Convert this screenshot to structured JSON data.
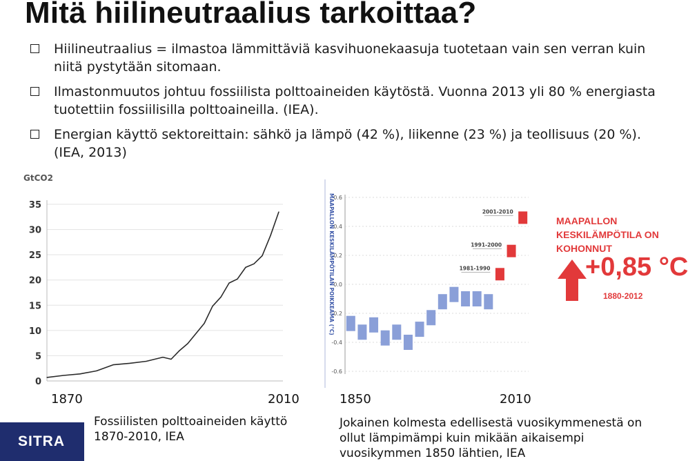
{
  "title": "Mitä hiilineutraalius tarkoittaa?",
  "bullets": [
    "Hiilineutraalius = ilmastoa lämmittäviä kasvihuonekaasuja tuotetaan vain sen verran kuin niitä pystytään sitomaan.",
    "Ilmastonmuutos johtuu fossiilista polttoaineiden käytöstä. Vuonna 2013 yli 80 % energiasta tuotettiin fossiilisilla polttoaineilla. (IEA).",
    "Energian käyttö sektoreittain: sähkö ja lämpö (42 %), liikenne (23 %) ja teollisuus (20 %). (IEA, 2013)"
  ],
  "chart_data": [
    {
      "type": "line",
      "ylabel": "GtCO2",
      "ylim": [
        0,
        35
      ],
      "yticks": [
        "0",
        "5",
        "10",
        "15",
        "20",
        "25",
        "30",
        "35"
      ],
      "xlim": [
        1870,
        2010
      ],
      "x_start_label": "1870",
      "x_end_label": "2010",
      "x": [
        1870,
        1880,
        1890,
        1900,
        1910,
        1920,
        1930,
        1940,
        1945,
        1950,
        1955,
        1960,
        1965,
        1970,
        1975,
        1980,
        1985,
        1990,
        1995,
        2000,
        2005,
        2010
      ],
      "y": [
        0.7,
        1.1,
        1.4,
        2.0,
        3.2,
        3.5,
        3.9,
        4.7,
        4.3,
        6.0,
        7.4,
        9.4,
        11.4,
        14.8,
        16.6,
        19.4,
        20.2,
        22.5,
        23.2,
        24.8,
        28.8,
        33.5
      ],
      "caption": "Fossiilisten polttoaineiden käyttö 1870-2010, IEA"
    },
    {
      "type": "scatter",
      "ylabel": "MAAPALLON KESKILÄMPÖTILAN POIKKEAMA (°C)",
      "ylim": [
        -0.6,
        0.6
      ],
      "yticks": [
        "0.6",
        "0.4",
        "0.2",
        "0.0",
        "-0.2",
        "-0.4",
        "-0.6"
      ],
      "xlim": [
        1850,
        2010
      ],
      "x_start_label": "1850",
      "x_end_label": "2010",
      "series": [
        {
          "color": "#8a9fd8",
          "x": [
            1855,
            1865,
            1875,
            1885,
            1895,
            1905,
            1915,
            1925,
            1935,
            1945,
            1955,
            1965,
            1975
          ],
          "y": [
            -0.27,
            -0.33,
            -0.28,
            -0.37,
            -0.33,
            -0.4,
            -0.31,
            -0.23,
            -0.12,
            -0.07,
            -0.1,
            -0.1,
            -0.12
          ]
        },
        {
          "color": "#e2393a",
          "x": [
            1985,
            1995,
            2005
          ],
          "y": [
            0.07,
            0.23,
            0.46
          ]
        }
      ],
      "annotations": [
        "2001-2010",
        "1991-2000",
        "1981-1990"
      ],
      "panel_title": "MAAPALLON KESKILÄMPÖTILA ON KOHONNUT",
      "big_value": "+0,85 °C",
      "period": "1880-2012",
      "caption": "Jokainen kolmesta edellisestä vuosikymmenestä on ollut lämpimämpi kuin mikään aikaisempi vuosikymmen 1850 lähtien, IEA"
    }
  ],
  "logo": "SITRA"
}
